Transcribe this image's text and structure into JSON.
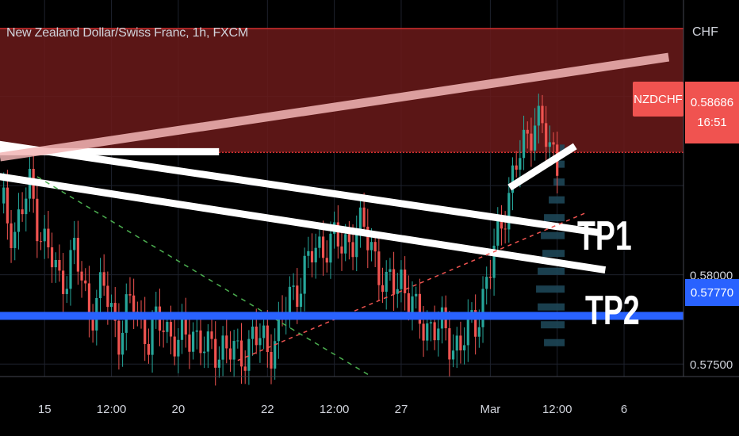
{
  "header": {
    "symbol_title": "New Zealand Dollar/Swiss Franc, 1h, FXCM",
    "currency": "CHF"
  },
  "price_tags": {
    "symbol": "NZDCHF",
    "last_price": "0.58686",
    "countdown": "16:51",
    "support_price": "0.57770"
  },
  "annotations": {
    "tp1": "TP1",
    "tp2": "TP2"
  },
  "colors": {
    "background": "#000000",
    "candle_up": "#26a69a",
    "candle_down": "#ef5350",
    "resistance_zone": "#6b1a1a",
    "support_line": "#2962ff",
    "price_tag": "#f05350",
    "grid": "#1e222d"
  },
  "chart_data": {
    "type": "candlestick",
    "title": "New Zealand Dollar/Swiss Franc, 1h, FXCM",
    "y_axis": {
      "unit": "CHF",
      "ylim": [
        0.5743,
        0.5954
      ],
      "ticks": [
        "0.58000",
        "0.57500"
      ]
    },
    "x_axis": {
      "ticks": [
        "15",
        "12:00",
        "20",
        "22",
        "12:00",
        "27",
        "Mar",
        "12:00",
        "6"
      ],
      "tick_index": [
        12,
        30,
        48,
        72,
        90,
        108,
        132,
        150,
        168
      ]
    },
    "last_price": 0.58686,
    "support_level": 0.5777,
    "resistance_zone": [
      0.58686,
      0.5938
    ],
    "close_path": [
      [
        0,
        0.584
      ],
      [
        4,
        0.5825
      ],
      [
        8,
        0.5848
      ],
      [
        12,
        0.5818
      ],
      [
        16,
        0.5796
      ],
      [
        20,
        0.5812
      ],
      [
        24,
        0.578
      ],
      [
        28,
        0.5792
      ],
      [
        32,
        0.5768
      ],
      [
        36,
        0.5785
      ],
      [
        40,
        0.5764
      ],
      [
        44,
        0.5775
      ],
      [
        48,
        0.576
      ],
      [
        52,
        0.577
      ],
      [
        56,
        0.5755
      ],
      [
        60,
        0.5762
      ],
      [
        64,
        0.5752
      ],
      [
        68,
        0.5766
      ],
      [
        72,
        0.5758
      ],
      [
        76,
        0.5775
      ],
      [
        80,
        0.5795
      ],
      [
        84,
        0.581
      ],
      [
        88,
        0.582
      ],
      [
        92,
        0.5815
      ],
      [
        96,
        0.5826
      ],
      [
        100,
        0.5818
      ],
      [
        104,
        0.579
      ],
      [
        108,
        0.58
      ],
      [
        112,
        0.5775
      ],
      [
        116,
        0.5772
      ],
      [
        120,
        0.5766
      ],
      [
        124,
        0.576
      ],
      [
        128,
        0.5775
      ],
      [
        132,
        0.5802
      ],
      [
        136,
        0.584
      ],
      [
        140,
        0.5866
      ],
      [
        144,
        0.589
      ],
      [
        148,
        0.587
      ],
      [
        150,
        0.5866
      ]
    ],
    "trendlines": [
      {
        "name": "upper-channel",
        "style": "white",
        "points": [
          [
            0,
            0.5873
          ],
          [
            160,
            0.5824
          ]
        ]
      },
      {
        "name": "lower-channel",
        "style": "white",
        "points": [
          [
            0,
            0.5855
          ],
          [
            162,
            0.5803
          ]
        ]
      },
      {
        "name": "short-resistance",
        "style": "white",
        "points": [
          [
            0,
            0.5869
          ],
          [
            58,
            0.5869
          ]
        ]
      },
      {
        "name": "rising-support",
        "style": "white",
        "points": [
          [
            138,
            0.585
          ],
          [
            154,
            0.5871
          ]
        ]
      },
      {
        "name": "ceiling",
        "style": "pink",
        "points": [
          [
            0,
            0.5866
          ],
          [
            180,
            0.5922
          ]
        ]
      },
      {
        "name": "red-dashed-up",
        "style": "red-dashed",
        "points": [
          [
            64,
            0.5752
          ],
          [
            158,
            0.5835
          ]
        ]
      },
      {
        "name": "green-dashed-down",
        "style": "green-dashed",
        "points": [
          [
            10,
            0.5855
          ],
          [
            100,
            0.5743
          ]
        ]
      }
    ],
    "annotation_labels": [
      {
        "text": "TP1",
        "y": 0.5803
      },
      {
        "text": "TP2",
        "y": 0.5762
      }
    ]
  }
}
